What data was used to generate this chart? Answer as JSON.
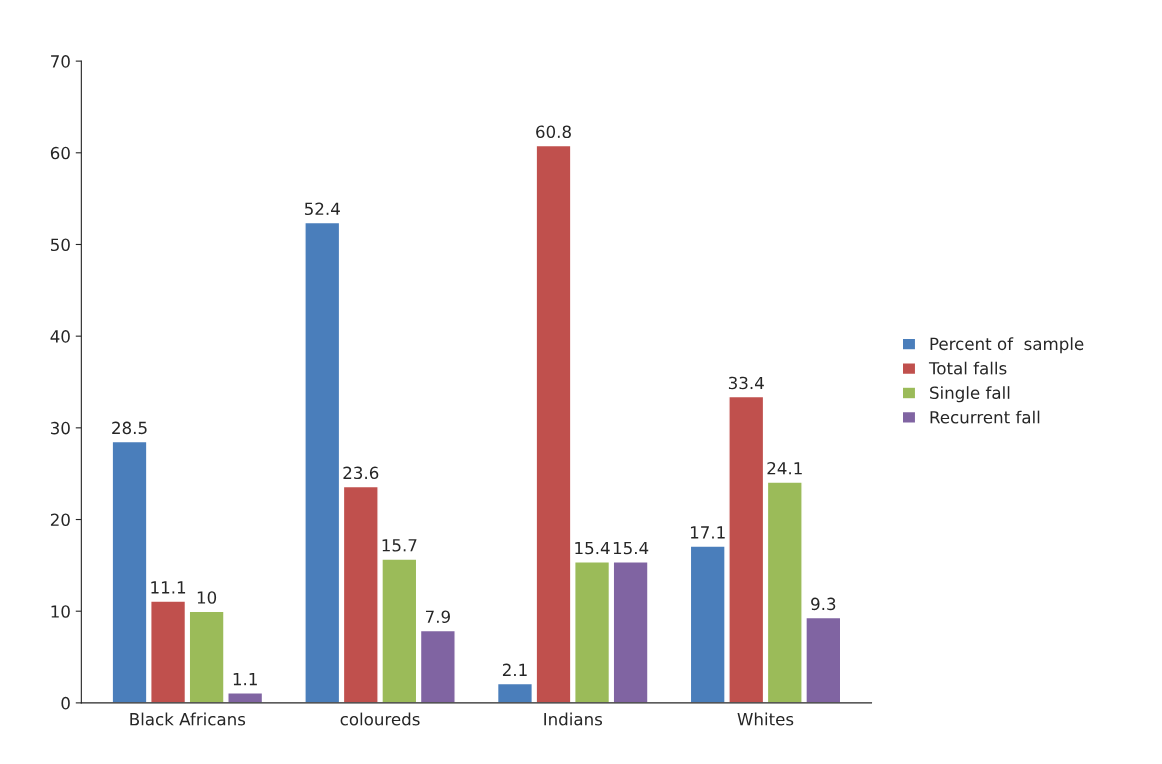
{
  "chart_data": {
    "type": "bar",
    "categories": [
      "Black Africans",
      "coloureds",
      "Indians",
      "Whites"
    ],
    "series": [
      {
        "name": "Percent of  sample",
        "color": "#4a7ebb",
        "values": [
          28.5,
          52.4,
          2.1,
          17.1
        ]
      },
      {
        "name": "Total falls",
        "color": "#c0504d",
        "values": [
          11.1,
          23.6,
          60.8,
          33.4
        ]
      },
      {
        "name": "Single fall",
        "color": "#9bbb59",
        "values": [
          10,
          15.7,
          15.4,
          24.1
        ]
      },
      {
        "name": "Recurrent fall",
        "color": "#8064a2",
        "values": [
          1.1,
          7.9,
          15.4,
          9.3
        ]
      }
    ],
    "ylim": [
      0,
      70
    ],
    "yticks": [
      0,
      10,
      20,
      30,
      40,
      50,
      60,
      70
    ],
    "data_labels": true,
    "grid": false,
    "legend": "right"
  }
}
